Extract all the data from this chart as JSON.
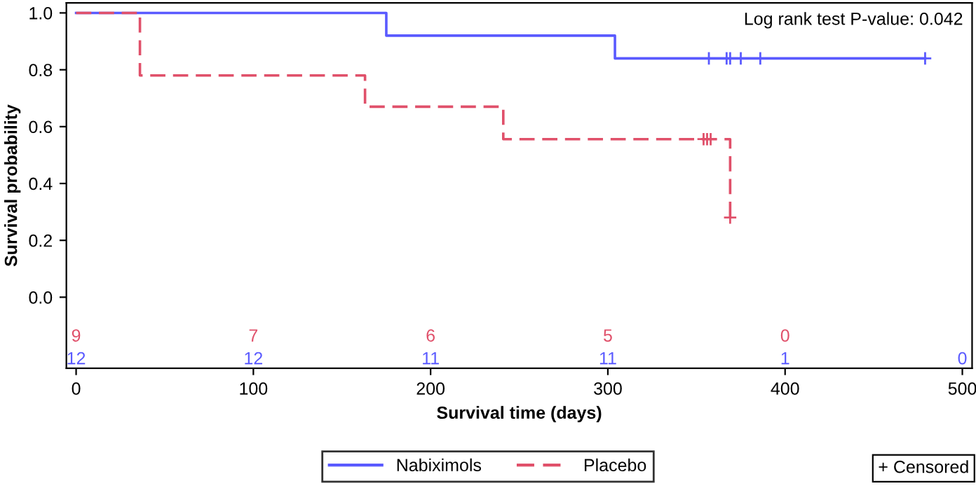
{
  "chart_data": {
    "type": "step",
    "xlabel": "Survival time (days)",
    "ylabel": "Survival probability",
    "xlim": [
      -5.5,
      505.5
    ],
    "ylim": [
      -0.25,
      1.035
    ],
    "xticks": [
      0,
      100,
      200,
      300,
      400,
      500
    ],
    "yticks": [
      {
        "value": 0,
        "label": "0.0"
      },
      {
        "value": 0.2,
        "label": "0.2"
      },
      {
        "value": 0.4,
        "label": "0.4"
      },
      {
        "value": 0.6,
        "label": "0.6"
      },
      {
        "value": 0.8,
        "label": "0.8"
      },
      {
        "value": 1,
        "label": "1.0"
      }
    ],
    "grid": false,
    "legend": "bottom",
    "series": [
      {
        "name": "Nabiximols",
        "color": "#5a5aff",
        "line_style": "solid",
        "x": [
          0,
          175,
          304,
          479
        ],
        "values": [
          1.0,
          0.92,
          0.84,
          0.84
        ]
      },
      {
        "name": "Placebo",
        "color": "#e0506a",
        "line_style": "dashed",
        "x": [
          0,
          36,
          163,
          241,
          369
        ],
        "values": [
          1.0,
          0.78,
          0.67,
          0.556,
          0.28
        ]
      },
      {
        "type": "scatter",
        "marker": "cross",
        "color": "#5a5aff",
        "x": [
          357,
          367,
          369,
          375,
          386,
          479
        ],
        "values": [
          0.84,
          0.84,
          0.84,
          0.84,
          0.84,
          0.84
        ]
      },
      {
        "type": "scatter",
        "marker": "cross",
        "color": "#e0506a",
        "x": [
          354,
          356,
          358,
          369
        ],
        "values": [
          0.556,
          0.556,
          0.556,
          0.28
        ]
      }
    ],
    "annotations": [
      "Log rank test P-value: 0.042",
      "+ Censored",
      "9",
      "7",
      "6",
      "5",
      "0",
      "12",
      "12",
      "11",
      "11",
      "1",
      "0"
    ]
  }
}
